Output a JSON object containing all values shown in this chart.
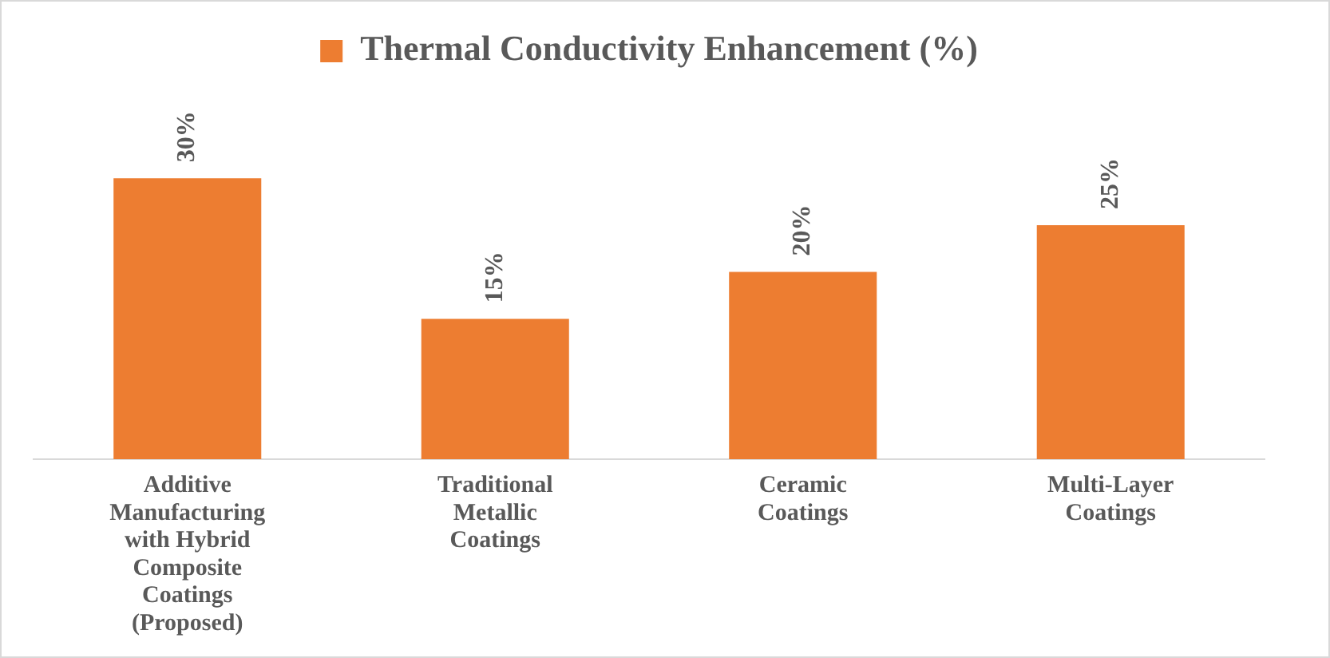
{
  "chart_data": {
    "type": "bar",
    "categories": [
      "Additive Manufacturing with Hybrid Composite Coatings (Proposed)",
      "Traditional Metallic Coatings",
      "Ceramic Coatings",
      "Multi-Layer Coatings"
    ],
    "series": [
      {
        "name": "Thermal Conductivity Enhancement (%)",
        "color": "#ed7d31",
        "values": [
          30,
          15,
          20,
          25
        ],
        "value_labels": [
          "30%",
          "15%",
          "20%",
          "25%"
        ]
      }
    ],
    "legend": "top",
    "grid": false
  }
}
